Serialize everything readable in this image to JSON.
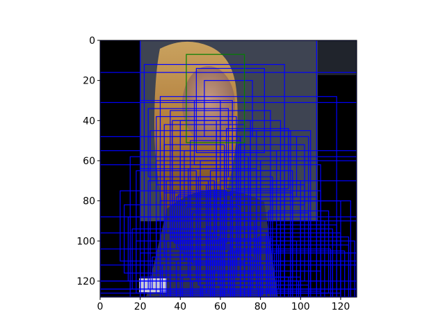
{
  "chart_data": {
    "type": "image_with_bounding_boxes",
    "image_size": [
      128,
      128
    ],
    "xlim": [
      0,
      128
    ],
    "ylim": [
      128,
      0
    ],
    "x_ticks": [
      0,
      20,
      40,
      60,
      80,
      100,
      120
    ],
    "y_ticks": [
      0,
      20,
      40,
      60,
      80,
      100,
      120
    ],
    "x_tick_labels": [
      "0",
      "20",
      "40",
      "60",
      "80",
      "100",
      "120"
    ],
    "y_tick_labels": [
      "0",
      "20",
      "40",
      "60",
      "80",
      "100",
      "120"
    ],
    "title": "",
    "xlabel": "",
    "ylabel": "",
    "grid": false,
    "legend": "none",
    "box_colors": {
      "candidate": "#0000ff",
      "highlight": "#008000"
    },
    "highlight_box": [
      43,
      7,
      72,
      51
    ],
    "candidate_boxes": [
      [
        0,
        0,
        128,
        128
      ],
      [
        20,
        0,
        108,
        128
      ],
      [
        0,
        16,
        128,
        128
      ],
      [
        22,
        12,
        92,
        128
      ],
      [
        0,
        31,
        128,
        128
      ],
      [
        30,
        28,
        118,
        128
      ],
      [
        0,
        48,
        104,
        128
      ],
      [
        0,
        55,
        128,
        120
      ],
      [
        15,
        58,
        128,
        128
      ],
      [
        0,
        62,
        110,
        124
      ],
      [
        25,
        45,
        95,
        128
      ],
      [
        35,
        35,
        85,
        128
      ],
      [
        40,
        40,
        75,
        128
      ],
      [
        45,
        50,
        70,
        128
      ],
      [
        50,
        60,
        80,
        128
      ],
      [
        55,
        65,
        90,
        128
      ],
      [
        60,
        70,
        100,
        128
      ],
      [
        65,
        75,
        110,
        128
      ],
      [
        70,
        80,
        120,
        128
      ],
      [
        75,
        45,
        105,
        128
      ],
      [
        80,
        60,
        128,
        110
      ],
      [
        85,
        70,
        128,
        128
      ],
      [
        90,
        80,
        125,
        128
      ],
      [
        95,
        90,
        128,
        128
      ],
      [
        30,
        80,
        110,
        125
      ],
      [
        28,
        90,
        105,
        126
      ],
      [
        33,
        100,
        98,
        128
      ],
      [
        38,
        110,
        92,
        128
      ],
      [
        0,
        88,
        128,
        124
      ],
      [
        0,
        96,
        120,
        126
      ],
      [
        0,
        104,
        115,
        128
      ],
      [
        0,
        112,
        128,
        124
      ],
      [
        0,
        120,
        110,
        128
      ],
      [
        20,
        118,
        100,
        128
      ],
      [
        48,
        14,
        82,
        56
      ],
      [
        52,
        20,
        76,
        48
      ],
      [
        47,
        30,
        66,
        62
      ],
      [
        36,
        40,
        58,
        96
      ],
      [
        42,
        55,
        68,
        110
      ],
      [
        58,
        45,
        78,
        100
      ],
      [
        62,
        55,
        88,
        115
      ],
      [
        68,
        65,
        96,
        118
      ],
      [
        72,
        72,
        102,
        120
      ],
      [
        78,
        78,
        108,
        124
      ],
      [
        84,
        85,
        114,
        126
      ],
      [
        88,
        92,
        118,
        128
      ],
      [
        92,
        98,
        124,
        128
      ],
      [
        18,
        65,
        48,
        120
      ],
      [
        24,
        70,
        54,
        124
      ],
      [
        28,
        60,
        58,
        115
      ],
      [
        32,
        52,
        62,
        108
      ],
      [
        36,
        48,
        70,
        100
      ],
      [
        40,
        58,
        74,
        112
      ],
      [
        44,
        64,
        78,
        118
      ],
      [
        49,
        68,
        86,
        122
      ],
      [
        53,
        72,
        92,
        126
      ],
      [
        57,
        76,
        96,
        128
      ],
      [
        61,
        82,
        100,
        128
      ],
      [
        66,
        86,
        104,
        128
      ],
      [
        70,
        90,
        112,
        128
      ],
      [
        74,
        94,
        116,
        128
      ],
      [
        79,
        98,
        120,
        128
      ],
      [
        83,
        102,
        124,
        128
      ],
      [
        87,
        106,
        128,
        128
      ],
      [
        10,
        75,
        60,
        110
      ],
      [
        12,
        82,
        66,
        116
      ],
      [
        14,
        88,
        72,
        120
      ],
      [
        16,
        94,
        78,
        124
      ],
      [
        18,
        100,
        84,
        126
      ],
      [
        20,
        106,
        90,
        128
      ],
      [
        26,
        108,
        76,
        124
      ],
      [
        31,
        112,
        81,
        127
      ],
      [
        35,
        116,
        86,
        128
      ],
      [
        41,
        118,
        94,
        128
      ],
      [
        46,
        120,
        99,
        128
      ],
      [
        51,
        122,
        104,
        128
      ],
      [
        56,
        115,
        110,
        128
      ],
      [
        62,
        110,
        116,
        128
      ],
      [
        67,
        105,
        122,
        128
      ],
      [
        72,
        100,
        127,
        128
      ],
      [
        45,
        85,
        70,
        110
      ],
      [
        48,
        88,
        74,
        112
      ],
      [
        50,
        90,
        77,
        115
      ],
      [
        53,
        93,
        80,
        118
      ],
      [
        56,
        96,
        83,
        120
      ],
      [
        59,
        99,
        86,
        122
      ],
      [
        61,
        102,
        89,
        124
      ],
      [
        64,
        105,
        92,
        126
      ],
      [
        38,
        78,
        62,
        104
      ],
      [
        41,
        80,
        66,
        106
      ],
      [
        43,
        83,
        69,
        108
      ],
      [
        46,
        86,
        72,
        111
      ],
      [
        33,
        70,
        57,
        96
      ],
      [
        35,
        72,
        60,
        98
      ],
      [
        37,
        75,
        63,
        101
      ],
      [
        39,
        77,
        66,
        103
      ],
      [
        60,
        40,
        90,
        70
      ],
      [
        63,
        44,
        94,
        74
      ],
      [
        66,
        48,
        98,
        78
      ],
      [
        69,
        52,
        102,
        82
      ],
      [
        20,
        30,
        60,
        64
      ],
      [
        24,
        34,
        64,
        68
      ],
      [
        28,
        38,
        68,
        72
      ],
      [
        32,
        42,
        72,
        76
      ]
    ]
  }
}
